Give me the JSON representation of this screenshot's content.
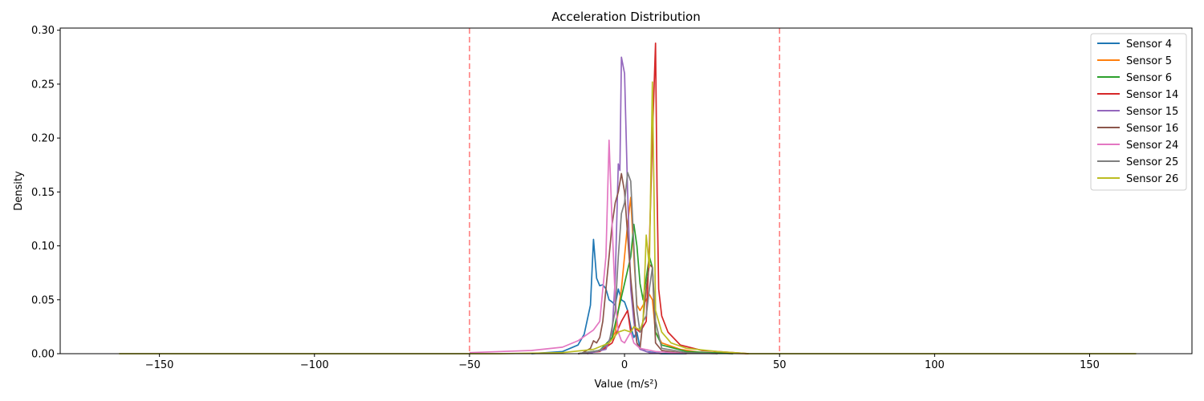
{
  "chart_data": {
    "type": "line",
    "title": "Acceleration Distribution",
    "xlabel": "Value (m/s²)",
    "ylabel": "Density",
    "xlim": [
      -182,
      183
    ],
    "ylim": [
      0,
      0.302
    ],
    "xticks": [
      -150,
      -100,
      -50,
      0,
      50,
      100,
      150
    ],
    "yticks": [
      0.0,
      0.05,
      0.1,
      0.15,
      0.2,
      0.25,
      0.3
    ],
    "grid": false,
    "legend_position": "top-right",
    "reference_lines": [
      {
        "x": -50,
        "color": "#ff7f7f",
        "style": "dashed"
      },
      {
        "x": 50,
        "color": "#ff7f7f",
        "style": "dashed"
      }
    ],
    "series": [
      {
        "name": "Sensor 4",
        "color": "#1f77b4",
        "points": [
          [
            -30,
            0
          ],
          [
            -20,
            0.002
          ],
          [
            -15,
            0.008
          ],
          [
            -13,
            0.018
          ],
          [
            -11,
            0.045
          ],
          [
            -10,
            0.106
          ],
          [
            -9,
            0.07
          ],
          [
            -8,
            0.063
          ],
          [
            -7,
            0.064
          ],
          [
            -6,
            0.06
          ],
          [
            -5,
            0.05
          ],
          [
            -4,
            0.048
          ],
          [
            -3,
            0.045
          ],
          [
            -2,
            0.06
          ],
          [
            -1,
            0.05
          ],
          [
            0,
            0.048
          ],
          [
            1,
            0.04
          ],
          [
            2,
            0.025
          ],
          [
            3,
            0.015
          ],
          [
            4,
            0.02
          ],
          [
            5,
            0.005
          ],
          [
            7,
            0.002
          ],
          [
            12,
            0.0
          ],
          [
            20,
            0.0
          ]
        ]
      },
      {
        "name": "Sensor 5",
        "color": "#ff7f0e",
        "points": [
          [
            -12,
            0
          ],
          [
            -6,
            0.005
          ],
          [
            -3,
            0.02
          ],
          [
            -1,
            0.06
          ],
          [
            1,
            0.12
          ],
          [
            2,
            0.145
          ],
          [
            3,
            0.09
          ],
          [
            4,
            0.045
          ],
          [
            5,
            0.04
          ],
          [
            6,
            0.045
          ],
          [
            7,
            0.05
          ],
          [
            8,
            0.055
          ],
          [
            9,
            0.05
          ],
          [
            10,
            0.02
          ],
          [
            12,
            0.01
          ],
          [
            18,
            0.004
          ],
          [
            25,
            0.001
          ],
          [
            40,
            0.0
          ]
        ]
      },
      {
        "name": "Sensor 6",
        "color": "#2ca02c",
        "points": [
          [
            -15,
            0
          ],
          [
            -8,
            0.003
          ],
          [
            -4,
            0.015
          ],
          [
            -2,
            0.04
          ],
          [
            0,
            0.065
          ],
          [
            2,
            0.09
          ],
          [
            3,
            0.12
          ],
          [
            4,
            0.1
          ],
          [
            5,
            0.065
          ],
          [
            6,
            0.05
          ],
          [
            7,
            0.07
          ],
          [
            8,
            0.09
          ],
          [
            9,
            0.08
          ],
          [
            10,
            0.02
          ],
          [
            12,
            0.008
          ],
          [
            20,
            0.002
          ],
          [
            35,
            0.0
          ]
        ]
      },
      {
        "name": "Sensor 14",
        "color": "#d62728",
        "points": [
          [
            -15,
            0
          ],
          [
            -8,
            0.002
          ],
          [
            -4,
            0.01
          ],
          [
            -1,
            0.03
          ],
          [
            1,
            0.04
          ],
          [
            2,
            0.02
          ],
          [
            3,
            0.025
          ],
          [
            5,
            0.02
          ],
          [
            7,
            0.03
          ],
          [
            8,
            0.1
          ],
          [
            9,
            0.2
          ],
          [
            10,
            0.288
          ],
          [
            10.5,
            0.15
          ],
          [
            11,
            0.06
          ],
          [
            12,
            0.035
          ],
          [
            14,
            0.02
          ],
          [
            18,
            0.008
          ],
          [
            25,
            0.003
          ],
          [
            40,
            0.0
          ]
        ]
      },
      {
        "name": "Sensor 15",
        "color": "#9467bd",
        "points": [
          [
            -12,
            0
          ],
          [
            -6,
            0.004
          ],
          [
            -4,
            0.02
          ],
          [
            -3,
            0.07
          ],
          [
            -2,
            0.176
          ],
          [
            -1.5,
            0.17
          ],
          [
            -1,
            0.275
          ],
          [
            0,
            0.26
          ],
          [
            1,
            0.15
          ],
          [
            2,
            0.06
          ],
          [
            3,
            0.03
          ],
          [
            4,
            0.01
          ],
          [
            5,
            0.004
          ],
          [
            8,
            0.001
          ],
          [
            12,
            0.0
          ]
        ]
      },
      {
        "name": "Sensor 16",
        "color": "#8c564b",
        "points": [
          [
            -14,
            0
          ],
          [
            -11,
            0.005
          ],
          [
            -10,
            0.012
          ],
          [
            -9,
            0.01
          ],
          [
            -8,
            0.015
          ],
          [
            -7,
            0.03
          ],
          [
            -6,
            0.06
          ],
          [
            -5,
            0.09
          ],
          [
            -4,
            0.12
          ],
          [
            -3,
            0.14
          ],
          [
            -2,
            0.15
          ],
          [
            -1,
            0.167
          ],
          [
            0,
            0.15
          ],
          [
            1,
            0.11
          ],
          [
            2,
            0.07
          ],
          [
            3,
            0.04
          ],
          [
            4,
            0.01
          ],
          [
            5,
            0.005
          ],
          [
            7,
            0.06
          ],
          [
            8,
            0.083
          ],
          [
            9,
            0.08
          ],
          [
            10,
            0.01
          ],
          [
            12,
            0.003
          ],
          [
            20,
            0.0
          ]
        ]
      },
      {
        "name": "Sensor 24",
        "color": "#e377c2",
        "points": [
          [
            -50,
            0.001
          ],
          [
            -40,
            0.002
          ],
          [
            -30,
            0.003
          ],
          [
            -20,
            0.006
          ],
          [
            -15,
            0.012
          ],
          [
            -10,
            0.022
          ],
          [
            -8,
            0.03
          ],
          [
            -6,
            0.09
          ],
          [
            -5,
            0.198
          ],
          [
            -4,
            0.12
          ],
          [
            -3,
            0.05
          ],
          [
            -2,
            0.02
          ],
          [
            -1,
            0.012
          ],
          [
            0,
            0.01
          ],
          [
            1,
            0.015
          ],
          [
            2,
            0.02
          ],
          [
            3,
            0.01
          ],
          [
            5,
            0.005
          ],
          [
            10,
            0.002
          ],
          [
            20,
            0.0
          ]
        ]
      },
      {
        "name": "Sensor 25",
        "color": "#7f7f7f",
        "points": [
          [
            -15,
            0
          ],
          [
            -8,
            0.003
          ],
          [
            -5,
            0.01
          ],
          [
            -3,
            0.04
          ],
          [
            -2,
            0.09
          ],
          [
            -1,
            0.13
          ],
          [
            0,
            0.14
          ],
          [
            1,
            0.168
          ],
          [
            2,
            0.16
          ],
          [
            3,
            0.1
          ],
          [
            4,
            0.04
          ],
          [
            5,
            0.02
          ],
          [
            6,
            0.03
          ],
          [
            7,
            0.035
          ],
          [
            8,
            0.06
          ],
          [
            9,
            0.08
          ],
          [
            10,
            0.03
          ],
          [
            12,
            0.005
          ],
          [
            20,
            0.001
          ],
          [
            30,
            0.0
          ]
        ]
      },
      {
        "name": "Sensor 26",
        "color": "#bcbd22",
        "points": [
          [
            -163,
            0
          ],
          [
            -100,
            0
          ],
          [
            -60,
            0
          ],
          [
            -40,
            0.0
          ],
          [
            -20,
            0.001
          ],
          [
            -10,
            0.004
          ],
          [
            -5,
            0.01
          ],
          [
            -2,
            0.02
          ],
          [
            0,
            0.022
          ],
          [
            2,
            0.02
          ],
          [
            3,
            0.025
          ],
          [
            5,
            0.022
          ],
          [
            6,
            0.03
          ],
          [
            7,
            0.11
          ],
          [
            8,
            0.08
          ],
          [
            9,
            0.252
          ],
          [
            9.5,
            0.15
          ],
          [
            10,
            0.04
          ],
          [
            12,
            0.02
          ],
          [
            15,
            0.01
          ],
          [
            20,
            0.005
          ],
          [
            30,
            0.002
          ],
          [
            40,
            0.0
          ],
          [
            100,
            0
          ],
          [
            165,
            0
          ]
        ]
      }
    ]
  }
}
